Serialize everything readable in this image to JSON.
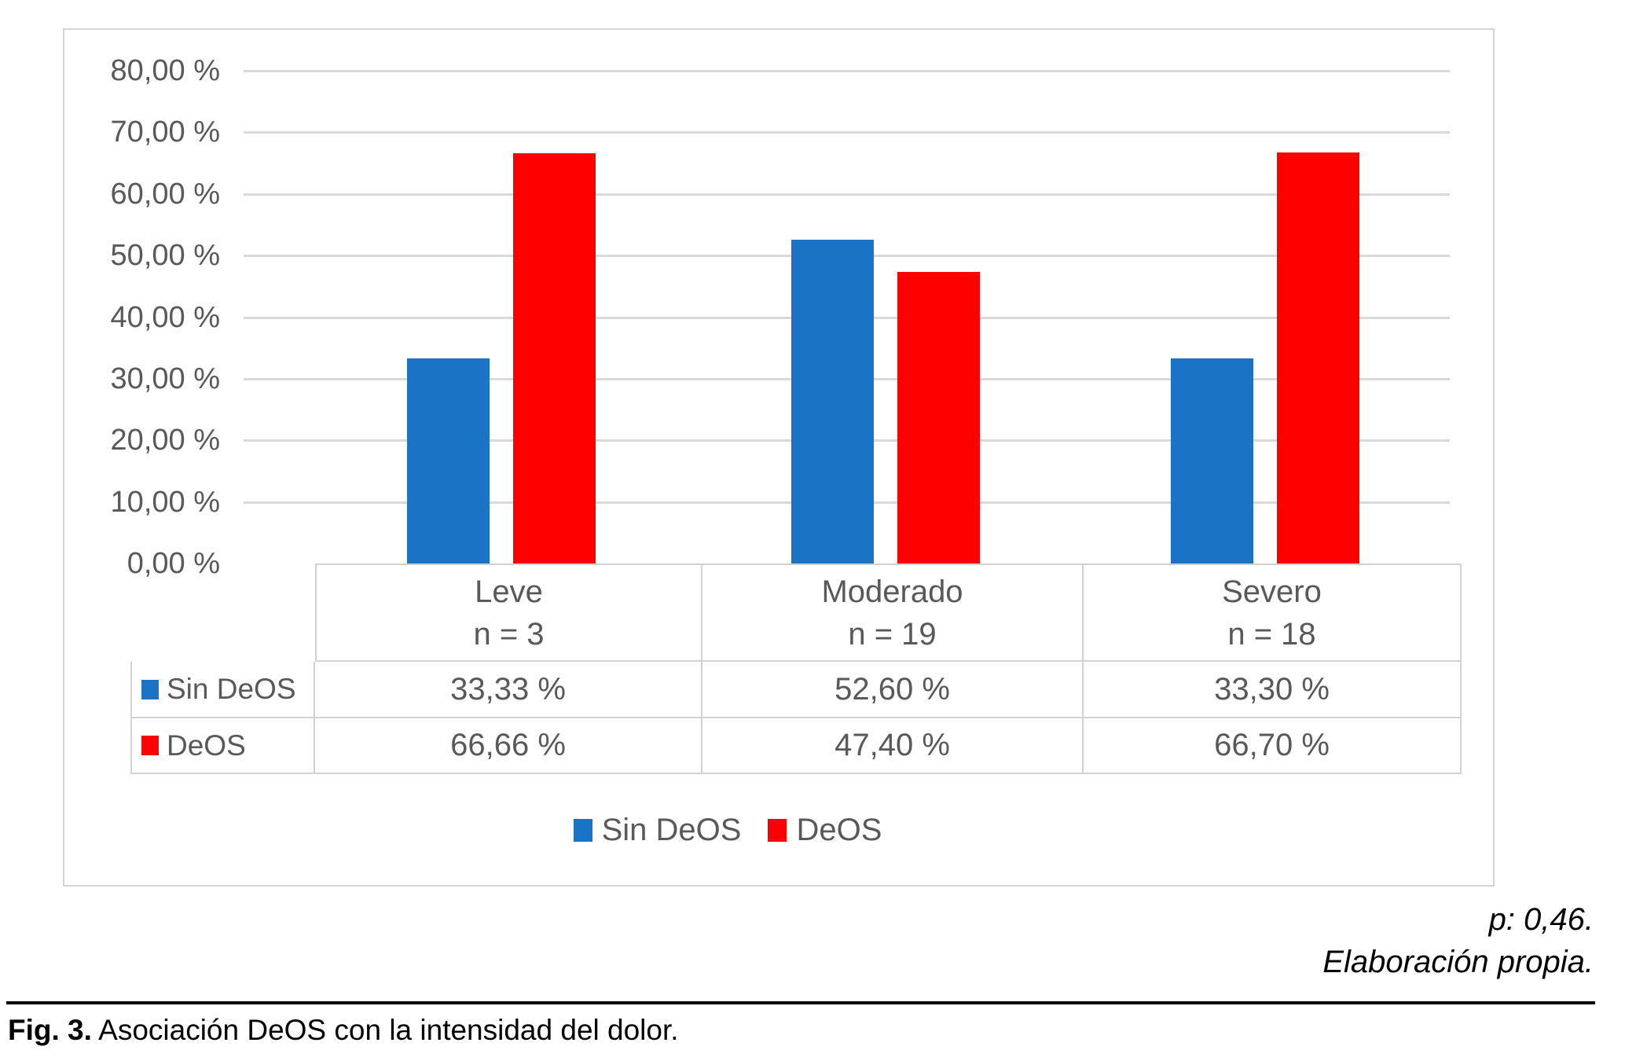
{
  "figure": {
    "p_value_note": "p: 0,46.",
    "source_note": "Elaboración propia.",
    "caption_label": "Fig. 3.",
    "caption_text": " Asociación DeOS con la intensidad del dolor."
  },
  "chart_data": {
    "type": "bar",
    "title": "",
    "categories": [
      "Leve",
      "Moderado",
      "Severo"
    ],
    "category_sublabels": [
      "n = 3",
      "n = 19",
      "n = 18"
    ],
    "series": [
      {
        "name": "Sin DeOS",
        "color": "#1b73c6",
        "values": [
          33.33,
          52.6,
          33.3
        ],
        "value_labels": [
          "33,33 %",
          "52,60 %",
          "33,30 %"
        ]
      },
      {
        "name": "DeOS",
        "color": "#ff0000",
        "values": [
          66.66,
          47.4,
          66.7
        ],
        "value_labels": [
          "66,66 %",
          "47,40 %",
          "66,70 %"
        ]
      }
    ],
    "ylim": [
      0,
      80
    ],
    "ytick_step": 10,
    "ytick_labels": [
      "0,00 %",
      "10,00 %",
      "20,00 %",
      "30,00 %",
      "40,00 %",
      "50,00 %",
      "60,00 %",
      "70,00 %",
      "80,00 %"
    ],
    "grid": true,
    "legend_position": "bottom",
    "legend_entries": [
      "Sin DeOS",
      "DeOS"
    ],
    "colors": {
      "grid": "#d9d9d9",
      "text": "#595959",
      "table_line": "#d2d2d2",
      "frame_border": "#d4d4d4"
    }
  }
}
